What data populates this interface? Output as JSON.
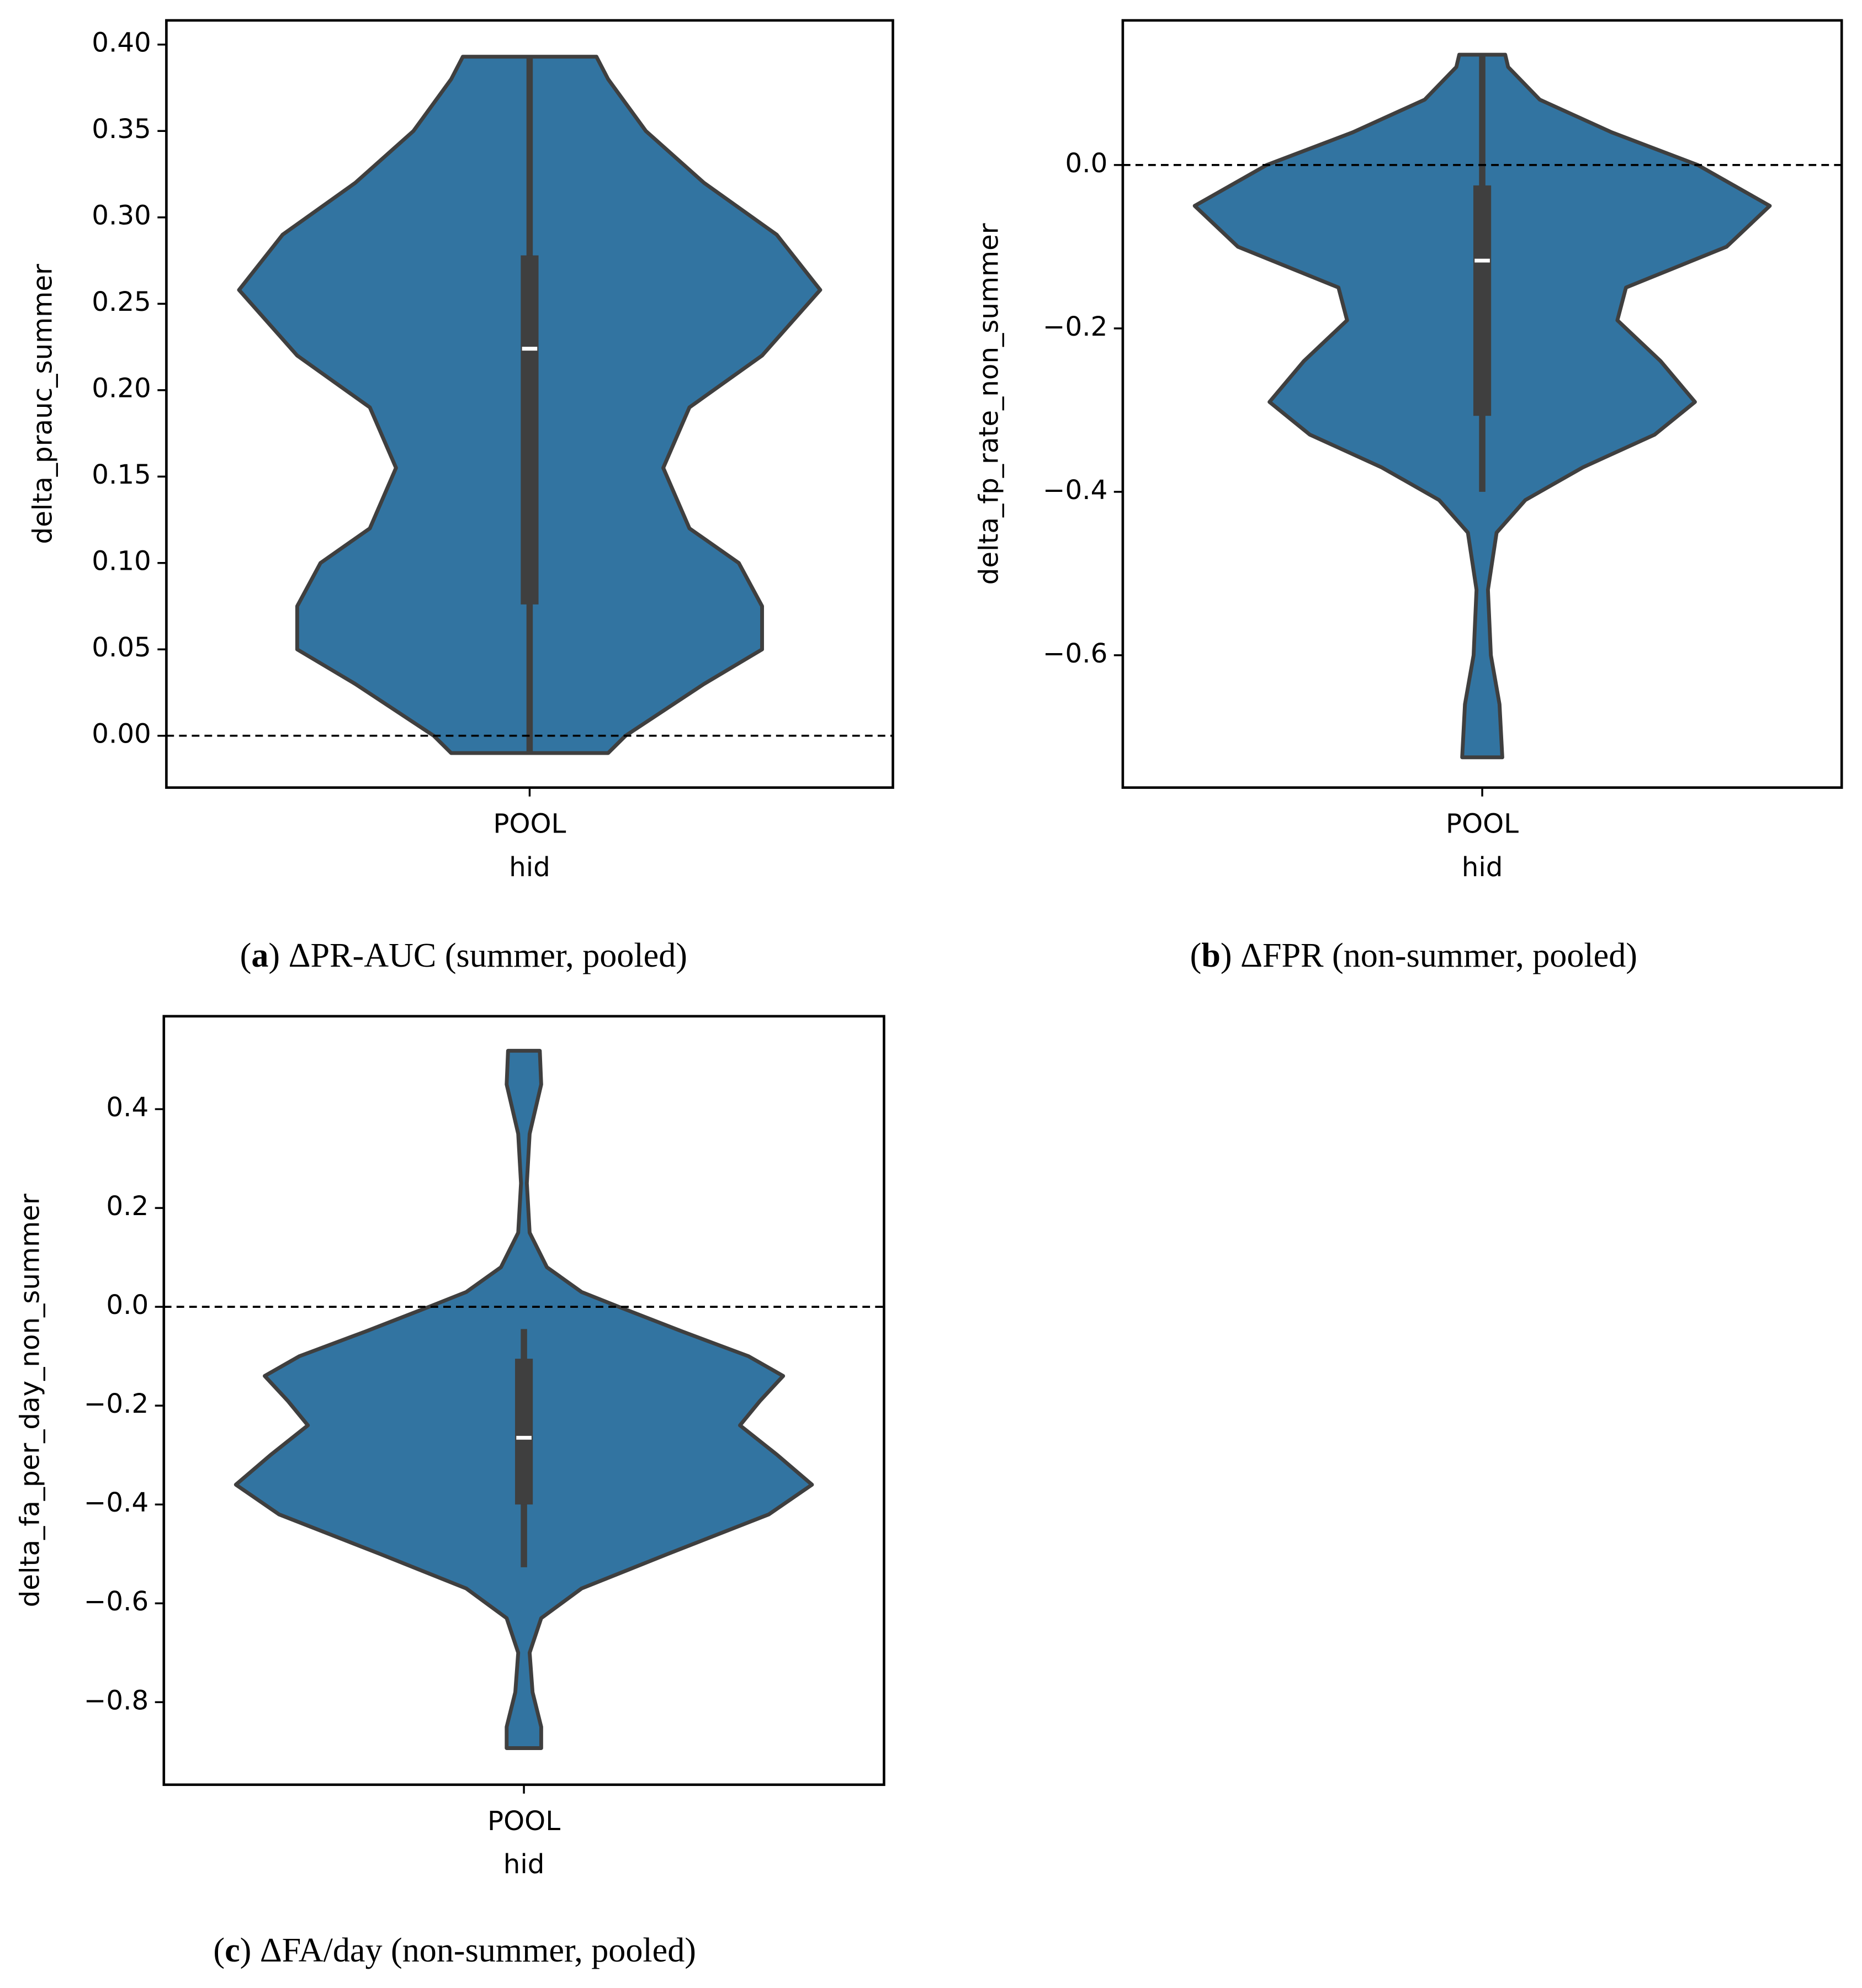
{
  "chart_data": [
    {
      "type": "violin",
      "caption_parts": [
        "(",
        "a",
        ") ΔPR-AUC (summer, pooled)"
      ],
      "categories": [
        "POOL"
      ],
      "xlabel": "hid",
      "ylabel": "delta_prauc_summer",
      "color": "#3274a1",
      "ylim": [
        -0.03,
        0.414
      ],
      "yticks": [
        {
          "value": 0,
          "label": "0.00"
        },
        0.05,
        {
          "value": 0.1,
          "label": "0.10"
        },
        0.15,
        {
          "value": 0.2,
          "label": "0.20"
        },
        0.25,
        {
          "value": 0.3,
          "label": "0.30"
        },
        0.35,
        {
          "value": 0.4,
          "label": "0.40"
        }
      ],
      "reference_line": 0,
      "violin": {
        "y": [
          -0.01,
          0.0,
          0.03,
          0.05,
          0.075,
          0.1,
          0.12,
          0.155,
          0.19,
          0.22,
          0.258,
          0.29,
          0.32,
          0.35,
          0.38,
          0.393
        ],
        "density": [
          0.27,
          0.33,
          0.6,
          0.8,
          0.8,
          0.72,
          0.55,
          0.46,
          0.55,
          0.8,
          1.0,
          0.85,
          0.6,
          0.4,
          0.27,
          0.23
        ]
      },
      "box": {
        "whisker_low": -0.01,
        "q1": 0.076,
        "median": 0.224,
        "q3": 0.278,
        "whisker_high": 0.393
      }
    },
    {
      "type": "violin",
      "caption_parts": [
        "(",
        "b",
        ") ΔFPR (non-summer, pooled)"
      ],
      "categories": [
        "POOL"
      ],
      "xlabel": "hid",
      "ylabel": "delta_fp_rate_non_summer",
      "color": "#3274a1",
      "ylim": [
        -0.762,
        0.177
      ],
      "yticks": [
        {
          "value": -0.6,
          "label": "−0.6"
        },
        {
          "value": -0.4,
          "label": "−0.4"
        },
        {
          "value": -0.2,
          "label": "−0.2"
        },
        {
          "value": 0,
          "label": "0.0"
        }
      ],
      "reference_line": 0,
      "violin": {
        "y": [
          -0.725,
          -0.66,
          -0.6,
          -0.52,
          -0.45,
          -0.41,
          -0.37,
          -0.33,
          -0.29,
          -0.24,
          -0.19,
          -0.15,
          -0.1,
          -0.05,
          0.0,
          0.04,
          0.08,
          0.12,
          0.135
        ],
        "density": [
          0.07,
          0.06,
          0.03,
          0.02,
          0.05,
          0.15,
          0.35,
          0.6,
          0.74,
          0.62,
          0.47,
          0.5,
          0.85,
          1.0,
          0.75,
          0.45,
          0.2,
          0.09,
          0.08
        ]
      },
      "box": {
        "whisker_low": -0.4,
        "q1": -0.307,
        "median": -0.117,
        "q3": -0.025,
        "whisker_high": 0.135
      }
    },
    {
      "type": "violin",
      "caption_parts": [
        "(",
        "c",
        ") ΔFA/day (non-summer, pooled)"
      ],
      "categories": [
        "POOL"
      ],
      "xlabel": "hid",
      "ylabel": "delta_fa_per_day_non_summer",
      "color": "#3274a1",
      "ylim": [
        -0.967,
        0.588
      ],
      "yticks": [
        {
          "value": -0.8,
          "label": "−0.8"
        },
        {
          "value": -0.6,
          "label": "−0.6"
        },
        {
          "value": -0.4,
          "label": "−0.4"
        },
        {
          "value": -0.2,
          "label": "−0.2"
        },
        {
          "value": 0,
          "label": "0.0"
        },
        0.2,
        0.4
      ],
      "reference_line": 0,
      "violin": {
        "y": [
          -0.893,
          -0.85,
          -0.78,
          -0.7,
          -0.63,
          -0.57,
          -0.5,
          -0.42,
          -0.36,
          -0.3,
          -0.24,
          -0.19,
          -0.14,
          -0.1,
          -0.05,
          0.0,
          0.03,
          0.08,
          0.15,
          0.25,
          0.35,
          0.45,
          0.518
        ],
        "density": [
          0.06,
          0.06,
          0.03,
          0.02,
          0.06,
          0.2,
          0.5,
          0.85,
          1.0,
          0.88,
          0.75,
          0.82,
          0.9,
          0.78,
          0.55,
          0.33,
          0.2,
          0.08,
          0.02,
          0.01,
          0.02,
          0.06,
          0.055
        ]
      },
      "box": {
        "whisker_low": -0.527,
        "q1": -0.4,
        "median": -0.265,
        "q3": -0.105,
        "whisker_high": -0.045
      }
    }
  ]
}
